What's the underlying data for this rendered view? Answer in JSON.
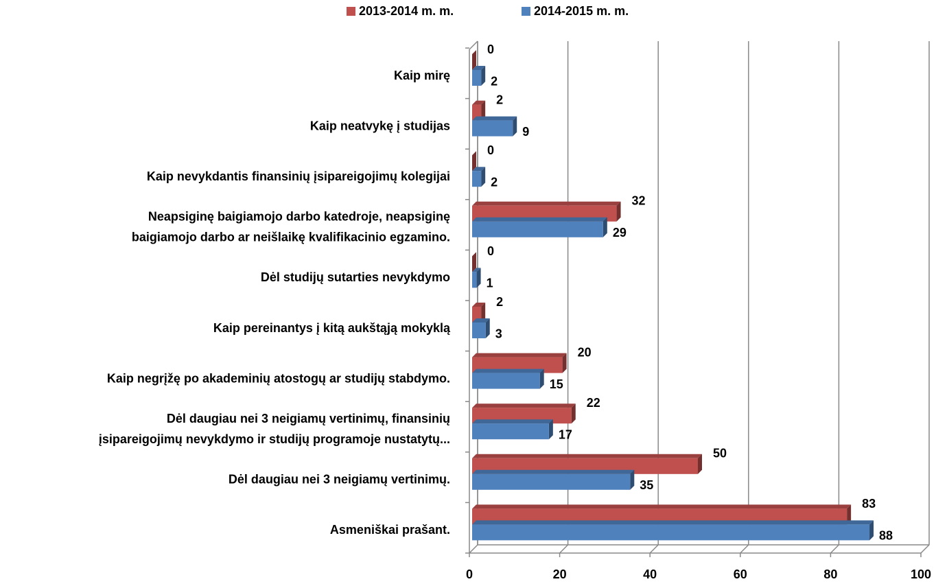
{
  "chart_data": {
    "type": "bar3d_horizontal",
    "categories": [
      "Kaip mirę",
      "Kaip neatvykę į studijas",
      "Kaip nevykdantis finansinių įsipareigojimų kolegijai",
      "Neapsiginę baigiamojo darbo katedroje, neapsiginę baigiamojo darbo ar neišlaikę kvalifikacinio egzamino.",
      "Dėl studijų sutarties nevykdymo",
      "Kaip pereinantys į kitą aukštąją mokyklą",
      "Kaip negrįžę po akademinių atostogų ar studijų stabdymo.",
      "Dėl daugiau nei 3 neigiamų vertinimų, finansinių įsipareigojimų nevykdymo ir studijų programoje nustatytų...",
      "Dėl daugiau nei 3 neigiamų vertinimų.",
      "Asmeniškai prašant."
    ],
    "series": [
      {
        "name": "2013-2014 m. m.",
        "color": "#c0504d",
        "values": [
          0,
          2,
          0,
          32,
          0,
          2,
          20,
          22,
          50,
          83
        ]
      },
      {
        "name": "2014-2015 m. m.",
        "color": "#4f81bd",
        "values": [
          2,
          9,
          2,
          29,
          1,
          3,
          15,
          17,
          35,
          88
        ]
      }
    ],
    "xlim": [
      0,
      100
    ],
    "xticks": [
      0,
      20,
      40,
      60,
      80,
      100
    ],
    "grid": true,
    "legend": "top"
  }
}
